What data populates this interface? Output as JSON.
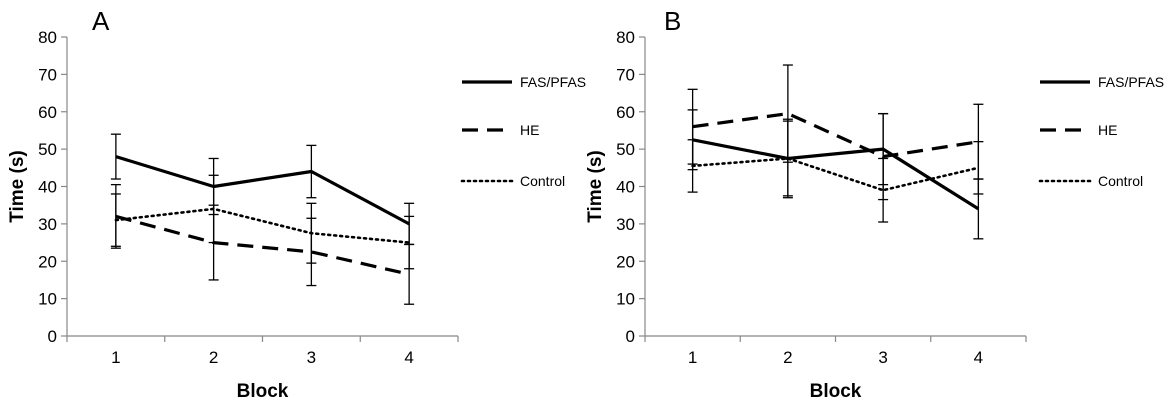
{
  "chart_data": [
    {
      "type": "line",
      "panel_label": "A",
      "categories": [
        "1",
        "2",
        "3",
        "4"
      ],
      "xlabel": "Block",
      "ylabel": "Time (s)",
      "ylim": [
        0,
        80
      ],
      "yticks": [
        0,
        10,
        20,
        30,
        40,
        50,
        60,
        70,
        80
      ],
      "grid": false,
      "legend_position": "right",
      "series": [
        {
          "name": "FAS/PFAS",
          "style": "solid",
          "values": [
            48,
            40,
            44,
            30
          ],
          "errors": [
            6,
            7.5,
            7,
            5.5
          ]
        },
        {
          "name": "HE",
          "style": "dashed",
          "values": [
            32,
            25,
            22.5,
            16.5
          ],
          "errors": [
            8.5,
            10,
            9,
            8
          ]
        },
        {
          "name": "Control",
          "style": "dotted",
          "values": [
            31,
            34,
            27.5,
            25
          ],
          "errors": [
            7,
            9,
            8,
            7
          ]
        }
      ]
    },
    {
      "type": "line",
      "panel_label": "B",
      "categories": [
        "1",
        "2",
        "3",
        "4"
      ],
      "xlabel": "Block",
      "ylabel": "Time (s)",
      "ylim": [
        0,
        80
      ],
      "yticks": [
        0,
        10,
        20,
        30,
        40,
        50,
        60,
        70,
        80
      ],
      "grid": false,
      "legend_position": "right",
      "series": [
        {
          "name": "FAS/PFAS",
          "style": "solid",
          "values": [
            52.5,
            47.5,
            50,
            34
          ],
          "errors": [
            8,
            10.5,
            9.5,
            8
          ]
        },
        {
          "name": "HE",
          "style": "dashed",
          "values": [
            56,
            59.5,
            48,
            52
          ],
          "errors": [
            10,
            13,
            11.5,
            10
          ]
        },
        {
          "name": "Control",
          "style": "dotted",
          "values": [
            45.5,
            47.5,
            39,
            45
          ],
          "errors": [
            7,
            10,
            8.5,
            7
          ]
        }
      ]
    }
  ]
}
